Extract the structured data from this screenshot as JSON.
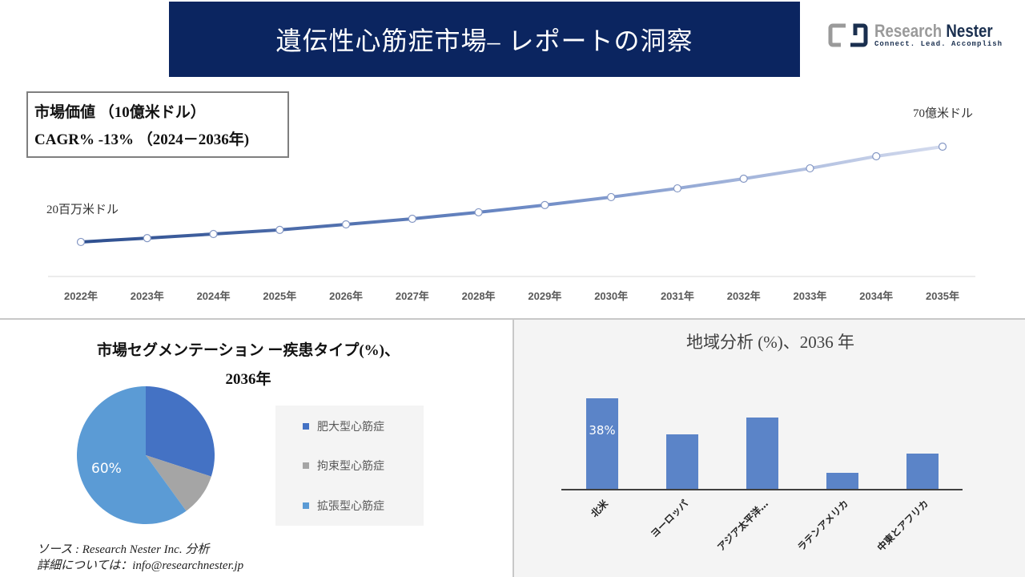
{
  "header": {
    "title": "遺伝性心筋症市場– レポートの洞察"
  },
  "logo": {
    "name_a": "Research",
    "name_b": "Nester",
    "tagline": "Connect. Lead. Accomplish"
  },
  "kpi": {
    "line1": "市場価値 （10億米ドル）",
    "line2": "CAGR% -13% （2024－2036年)"
  },
  "labels": {
    "start": "20百万米ドル",
    "end": "70億米ドル"
  },
  "colors": {
    "banner": "#0b2560",
    "line_start": "#2e4f8f",
    "line_end": "#d4dbee",
    "bar": "#5b84c8",
    "pie": [
      "#4472c4",
      "#a5a5a5",
      "#5b9bd5"
    ]
  },
  "chart_data": [
    {
      "type": "line",
      "categories": [
        "2022年",
        "2023年",
        "2024年",
        "2025年",
        "2026年",
        "2027年",
        "2028年",
        "2029年",
        "2030年",
        "2031年",
        "2032年",
        "2033年",
        "2034年",
        "2035年"
      ],
      "values": [
        18.6,
        20.7,
        22.9,
        25.1,
        28.1,
        31.1,
        34.6,
        38.5,
        42.8,
        47.5,
        52.7,
        58.3,
        64.8,
        70
      ],
      "grid": false
    },
    {
      "type": "pie",
      "title": "市場セグメンテーション ー疾患タイプ(%)、",
      "title2": "2036年",
      "categories": [
        "肥大型心筋症",
        "拘束型心筋症",
        "拡張型心筋症"
      ],
      "values": [
        30,
        10,
        60
      ],
      "data_labels": [
        "",
        "",
        "60%"
      ],
      "legend": "right"
    },
    {
      "type": "bar",
      "title": "地域分析 (%)、2036 年",
      "categories": [
        "北米",
        "ヨーロッパ",
        "アジア太平洋…",
        "ラテンアメリカ",
        "中東とアフリカ"
      ],
      "values": [
        38,
        23,
        30,
        7,
        15
      ],
      "data_labels": [
        "38%",
        "",
        "",
        "",
        ""
      ]
    }
  ],
  "footer": {
    "source": "ソース : Research Nester Inc. 分析",
    "contact": "詳細については：info@researchnester.jp"
  }
}
